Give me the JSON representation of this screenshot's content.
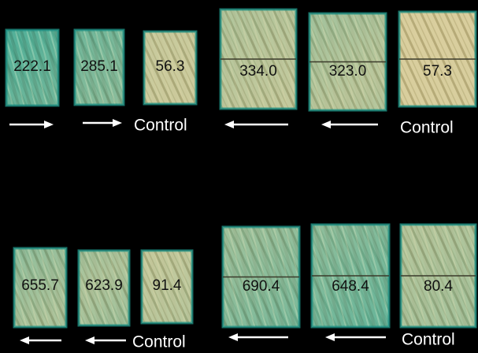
{
  "groups": [
    {
      "samples": [
        {
          "label": "222.1"
        },
        {
          "label": "285.1"
        },
        {
          "label": "56.3"
        }
      ],
      "caption": "Control"
    },
    {
      "samples": [
        {
          "label": "334.0"
        },
        {
          "label": "323.0"
        },
        {
          "label": "57.3"
        }
      ],
      "caption": "Control"
    },
    {
      "samples": [
        {
          "label": "655.7"
        },
        {
          "label": "623.9"
        },
        {
          "label": "91.4"
        }
      ],
      "caption": "Control"
    },
    {
      "samples": [
        {
          "label": "690.4"
        },
        {
          "label": "648.4"
        },
        {
          "label": "80.4"
        }
      ],
      "caption": "Control"
    }
  ]
}
